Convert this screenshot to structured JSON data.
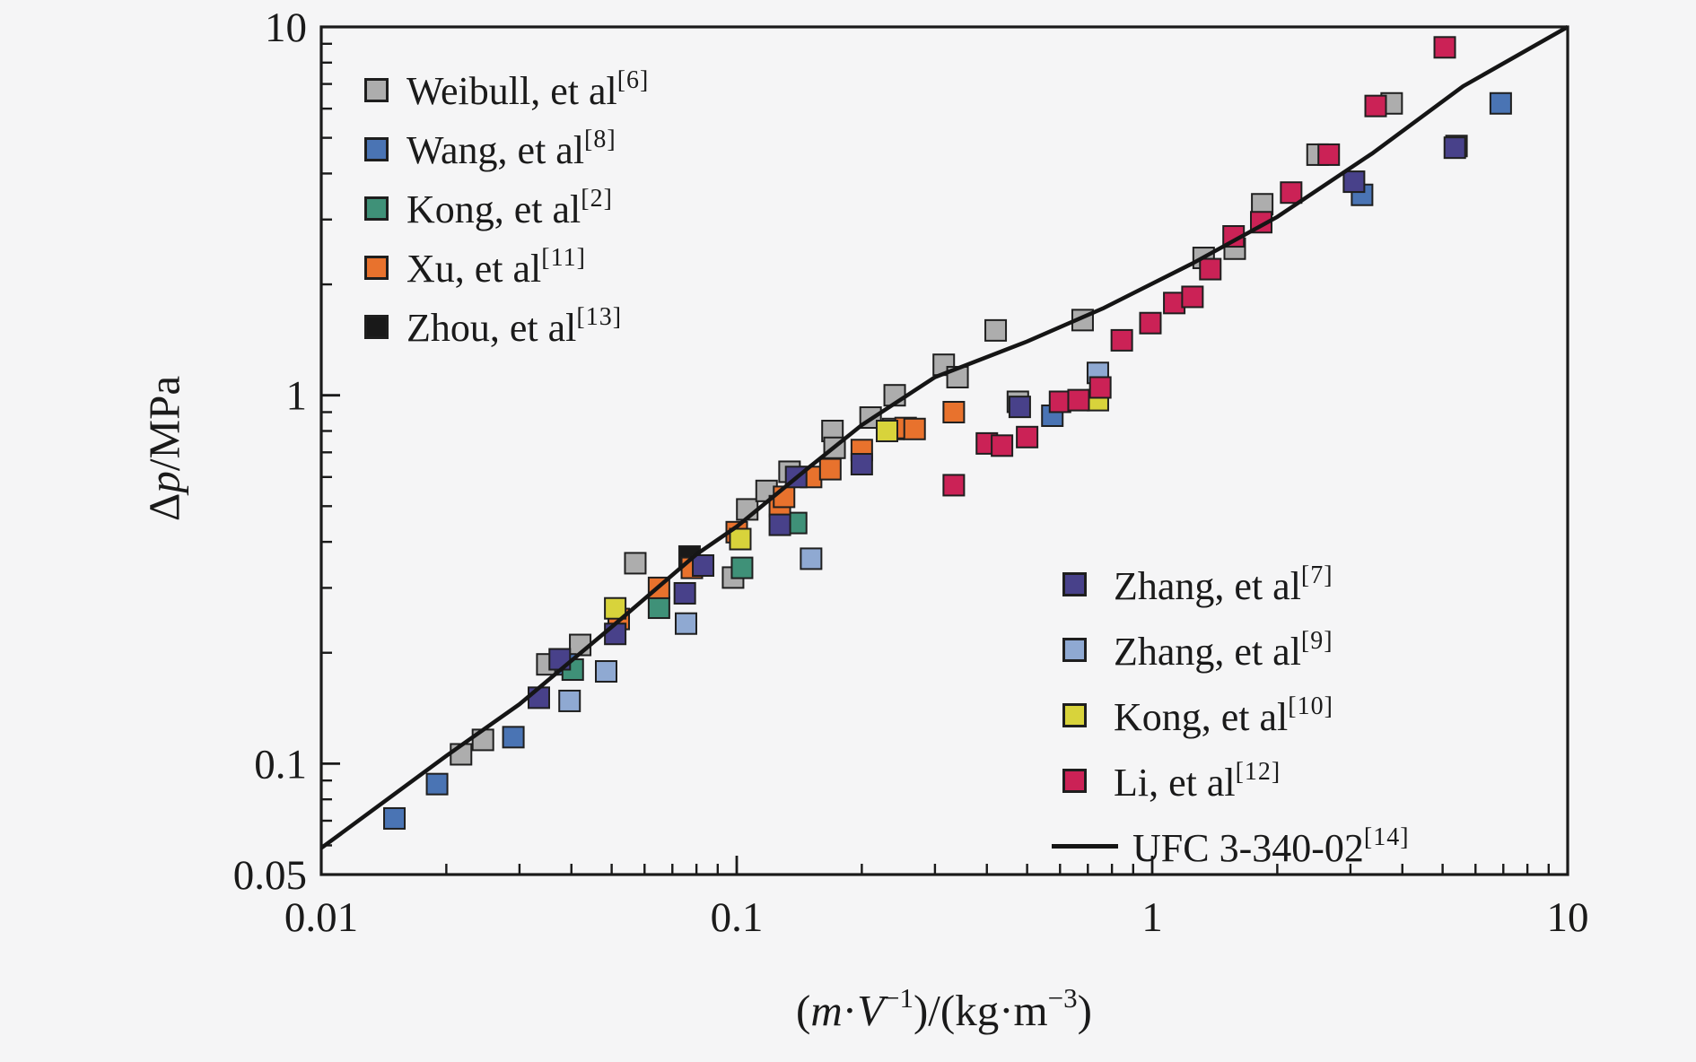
{
  "chart_data": {
    "type": "scatter",
    "title": "",
    "xlabel": "(m·V-1)/(kg·m-3)",
    "ylabel": "Δp/MPa",
    "xlabel_parts": {
      "p1": "(",
      "m": "m",
      "d1": "·",
      "v": "V",
      "s1": "−1",
      "p2": ")/(kg·m",
      "s2": "−3",
      "p3": ")"
    },
    "ylabel_parts": {
      "d": "Δ",
      "p": "p",
      "r": "/MPa"
    },
    "x_axis": {
      "scale": "log",
      "min": 0.01,
      "max": 10,
      "tick_values": [
        0.01,
        0.1,
        1,
        10
      ],
      "tick_labels": [
        "0.01",
        "0.1",
        "1",
        "10"
      ]
    },
    "y_axis": {
      "scale": "log",
      "min": 0.05,
      "max": 10,
      "tick_values": [
        0.05,
        0.1,
        1,
        10
      ],
      "tick_labels": [
        "0.05",
        "0.1",
        "1",
        "10"
      ]
    },
    "grid": false,
    "legend_positions": [
      "top-left",
      "bottom-right"
    ],
    "frame_color": "#1a1a1a",
    "background": "#f5f5f6",
    "marker_size_px": 23,
    "draw_order": [
      0,
      1,
      2,
      4,
      3,
      5,
      6,
      7,
      8
    ],
    "series": [
      {
        "name": "weibull",
        "label": "Weibull, et al",
        "ref": "[6]",
        "color": "#adadad",
        "points": [
          [
            0.0217,
            0.106
          ],
          [
            0.0245,
            0.116
          ],
          [
            0.035,
            0.186
          ],
          [
            0.042,
            0.21
          ],
          [
            0.057,
            0.35
          ],
          [
            0.098,
            0.32
          ],
          [
            0.106,
            0.49
          ],
          [
            0.118,
            0.55
          ],
          [
            0.134,
            0.62
          ],
          [
            0.17,
            0.8
          ],
          [
            0.172,
            0.72
          ],
          [
            0.21,
            0.87
          ],
          [
            0.238,
            0.81
          ],
          [
            0.24,
            1.0
          ],
          [
            0.315,
            1.21
          ],
          [
            0.34,
            1.12
          ],
          [
            0.42,
            1.5
          ],
          [
            0.475,
            0.96
          ],
          [
            0.68,
            1.6
          ],
          [
            1.33,
            2.36
          ],
          [
            1.58,
            2.5
          ],
          [
            1.84,
            3.3
          ],
          [
            2.5,
            4.5
          ],
          [
            3.77,
            6.2
          ],
          [
            5.4,
            4.75
          ]
        ]
      },
      {
        "name": "wang",
        "label": "Wang, et al",
        "ref": "[8]",
        "color": "#4a74b4",
        "points": [
          [
            0.015,
            0.071
          ],
          [
            0.019,
            0.088
          ],
          [
            0.029,
            0.118
          ],
          [
            0.0387,
            0.186
          ],
          [
            0.575,
            0.88
          ],
          [
            3.2,
            3.5
          ],
          [
            6.9,
            6.2
          ]
        ]
      },
      {
        "name": "kong2",
        "label": "Kong, et al",
        "ref": "[2]",
        "color": "#3f9178",
        "points": [
          [
            0.0403,
            0.18
          ],
          [
            0.065,
            0.265
          ],
          [
            0.103,
            0.34
          ],
          [
            0.139,
            0.45
          ]
        ]
      },
      {
        "name": "xu",
        "label": "Xu, et al",
        "ref": "[11]",
        "color": "#e8722d",
        "points": [
          [
            0.052,
            0.247
          ],
          [
            0.065,
            0.3
          ],
          [
            0.078,
            0.34
          ],
          [
            0.1,
            0.425
          ],
          [
            0.127,
            0.5
          ],
          [
            0.13,
            0.53
          ],
          [
            0.151,
            0.6
          ],
          [
            0.168,
            0.63
          ],
          [
            0.2,
            0.71
          ],
          [
            0.255,
            0.815
          ],
          [
            0.268,
            0.81
          ],
          [
            0.333,
            0.9
          ]
        ]
      },
      {
        "name": "zhou",
        "label": "Zhou, et al",
        "ref": "[13]",
        "color": "#191919",
        "points": [
          [
            0.077,
            0.365
          ]
        ]
      },
      {
        "name": "zhang7",
        "label": "Zhang, et al",
        "ref": "[7]",
        "color": "#48418a",
        "points": [
          [
            0.0334,
            0.151
          ],
          [
            0.0375,
            0.192
          ],
          [
            0.051,
            0.225
          ],
          [
            0.075,
            0.29
          ],
          [
            0.083,
            0.345
          ],
          [
            0.127,
            0.445
          ],
          [
            0.139,
            0.6
          ],
          [
            0.2,
            0.65
          ],
          [
            0.48,
            0.93
          ],
          [
            3.06,
            3.8
          ],
          [
            5.35,
            4.7
          ]
        ]
      },
      {
        "name": "zhang9",
        "label": "Zhang, et al",
        "ref": "[9]",
        "color": "#8fa9d2",
        "points": [
          [
            0.0396,
            0.148
          ],
          [
            0.0485,
            0.178
          ],
          [
            0.0755,
            0.24
          ],
          [
            0.151,
            0.36
          ],
          [
            0.74,
            1.15
          ]
        ]
      },
      {
        "name": "kong10",
        "label": "Kong, et al",
        "ref": "[10]",
        "color": "#d8d33b",
        "points": [
          [
            0.051,
            0.264
          ],
          [
            0.102,
            0.407
          ],
          [
            0.23,
            0.8
          ],
          [
            0.74,
            0.97
          ]
        ]
      },
      {
        "name": "li",
        "label": "Li, et al",
        "ref": "[12]",
        "color": "#cb2256",
        "points": [
          [
            0.333,
            0.57
          ],
          [
            0.4,
            0.74
          ],
          [
            0.435,
            0.73
          ],
          [
            0.5,
            0.77
          ],
          [
            0.6,
            0.96
          ],
          [
            0.665,
            0.97
          ],
          [
            0.75,
            1.05
          ],
          [
            0.845,
            1.41
          ],
          [
            0.99,
            1.57
          ],
          [
            1.13,
            1.78
          ],
          [
            1.25,
            1.85
          ],
          [
            1.38,
            2.2
          ],
          [
            1.57,
            2.7
          ],
          [
            1.83,
            2.95
          ],
          [
            2.16,
            3.55
          ],
          [
            2.66,
            4.5
          ],
          [
            3.45,
            6.1
          ],
          [
            5.06,
            8.8
          ]
        ]
      }
    ],
    "line": {
      "name": "ufc",
      "label": "UFC 3-340-02",
      "ref": "[14]",
      "color": "#151515",
      "points": [
        [
          0.01,
          0.059
        ],
        [
          0.02,
          0.105
        ],
        [
          0.03,
          0.145
        ],
        [
          0.05,
          0.235
        ],
        [
          0.08,
          0.37
        ],
        [
          0.1,
          0.44
        ],
        [
          0.15,
          0.64
        ],
        [
          0.2,
          0.83
        ],
        [
          0.3,
          1.12
        ],
        [
          0.5,
          1.4
        ],
        [
          0.76,
          1.72
        ],
        [
          1.25,
          2.28
        ],
        [
          2.0,
          3.05
        ],
        [
          3.4,
          4.55
        ],
        [
          5.6,
          6.9
        ],
        [
          10,
          10
        ]
      ]
    }
  }
}
